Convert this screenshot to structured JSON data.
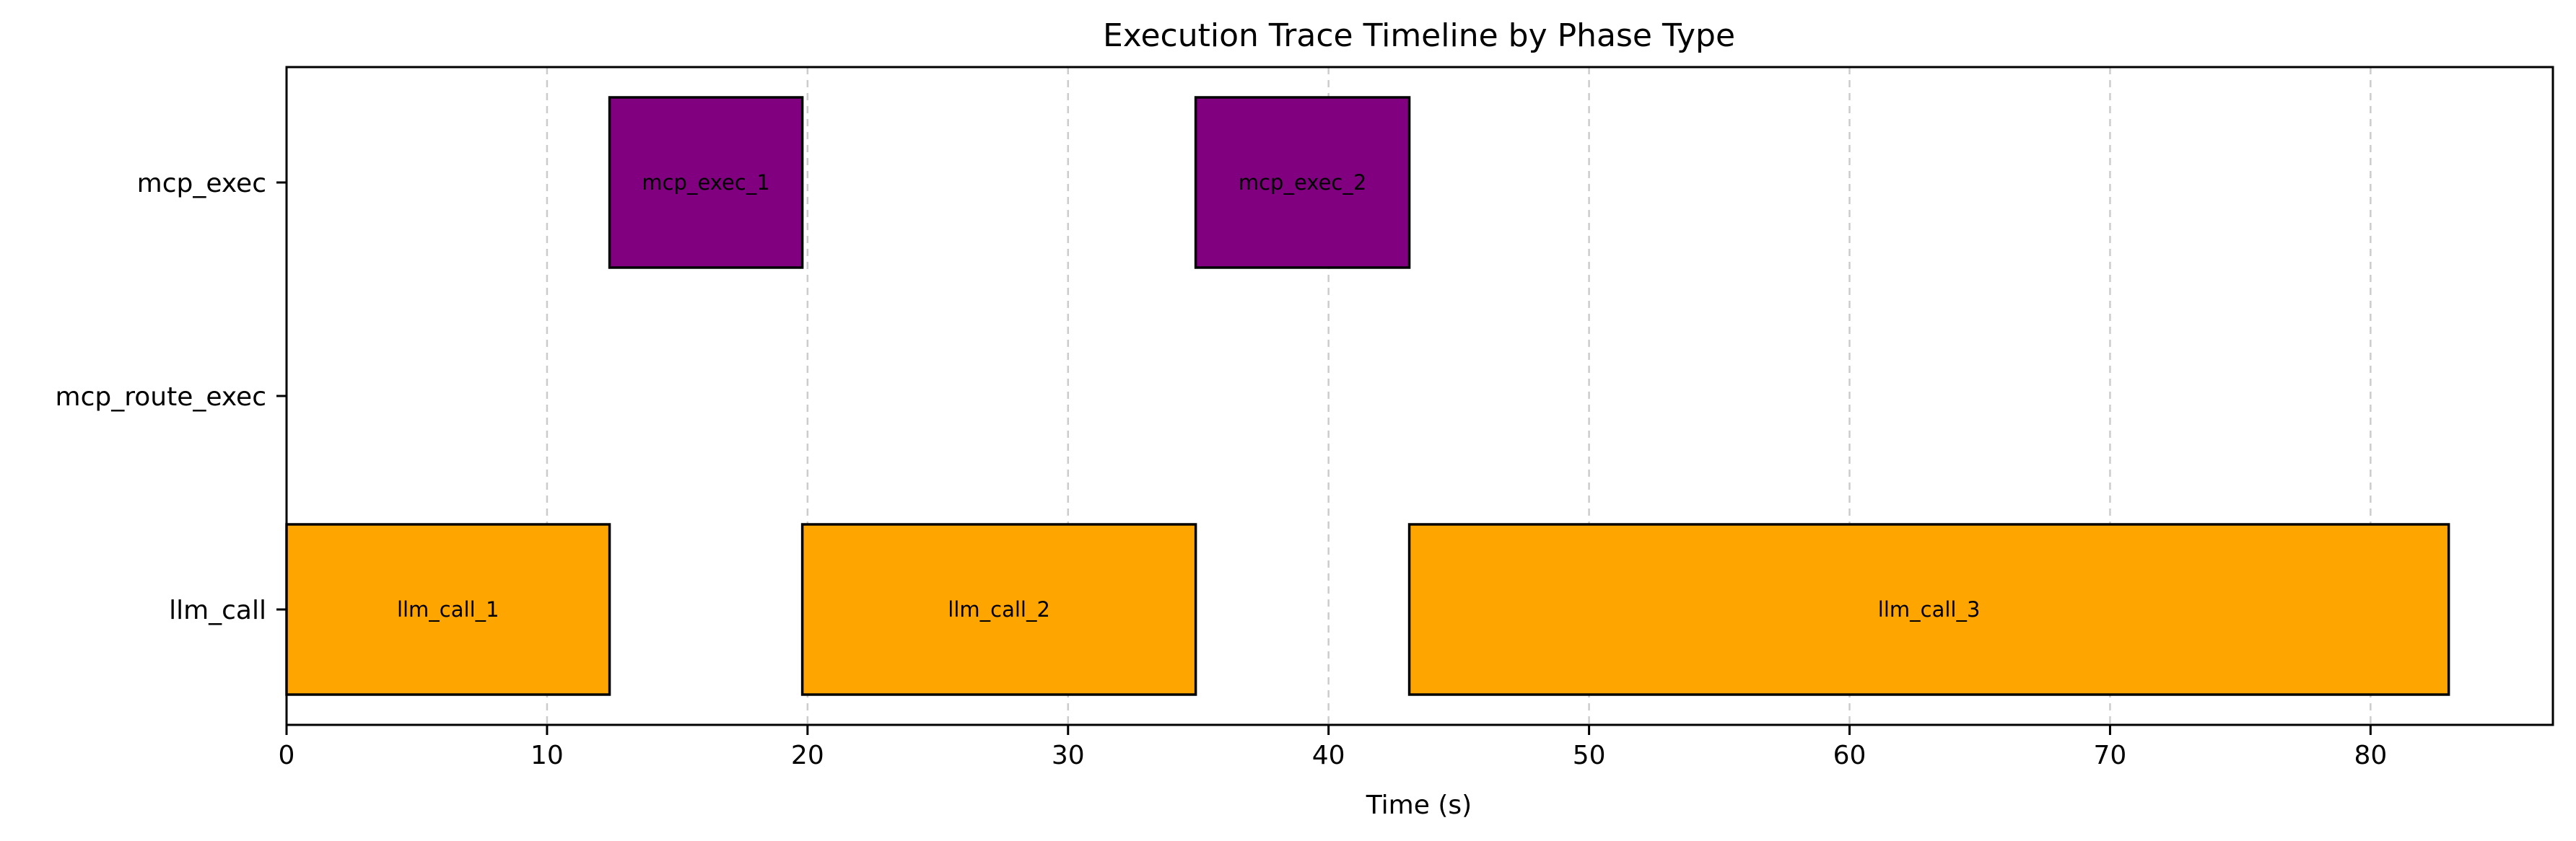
{
  "chart_data": {
    "type": "gantt",
    "title": "Execution Trace Timeline by Phase Type",
    "xlabel": "Time (s)",
    "ylabel": "",
    "xlim": [
      0,
      87
    ],
    "xticks": [
      0,
      10,
      20,
      30,
      40,
      50,
      60,
      70,
      80
    ],
    "grid": "vertical-dashed",
    "categories": [
      "mcp_exec",
      "mcp_route_exec",
      "llm_call"
    ],
    "colors": {
      "llm_call": "#FFA500",
      "mcp_exec": "#800080",
      "mcp_route_exec": "#4682b4"
    },
    "tasks": [
      {
        "label": "llm_call_1",
        "category": "llm_call",
        "start": 0.0,
        "end": 12.4
      },
      {
        "label": "mcp_exec_1",
        "category": "mcp_exec",
        "start": 12.4,
        "end": 19.8
      },
      {
        "label": "llm_call_2",
        "category": "llm_call",
        "start": 19.8,
        "end": 34.9
      },
      {
        "label": "mcp_exec_2",
        "category": "mcp_exec",
        "start": 34.9,
        "end": 43.1
      },
      {
        "label": "llm_call_3",
        "category": "llm_call",
        "start": 43.1,
        "end": 83.0
      }
    ]
  }
}
